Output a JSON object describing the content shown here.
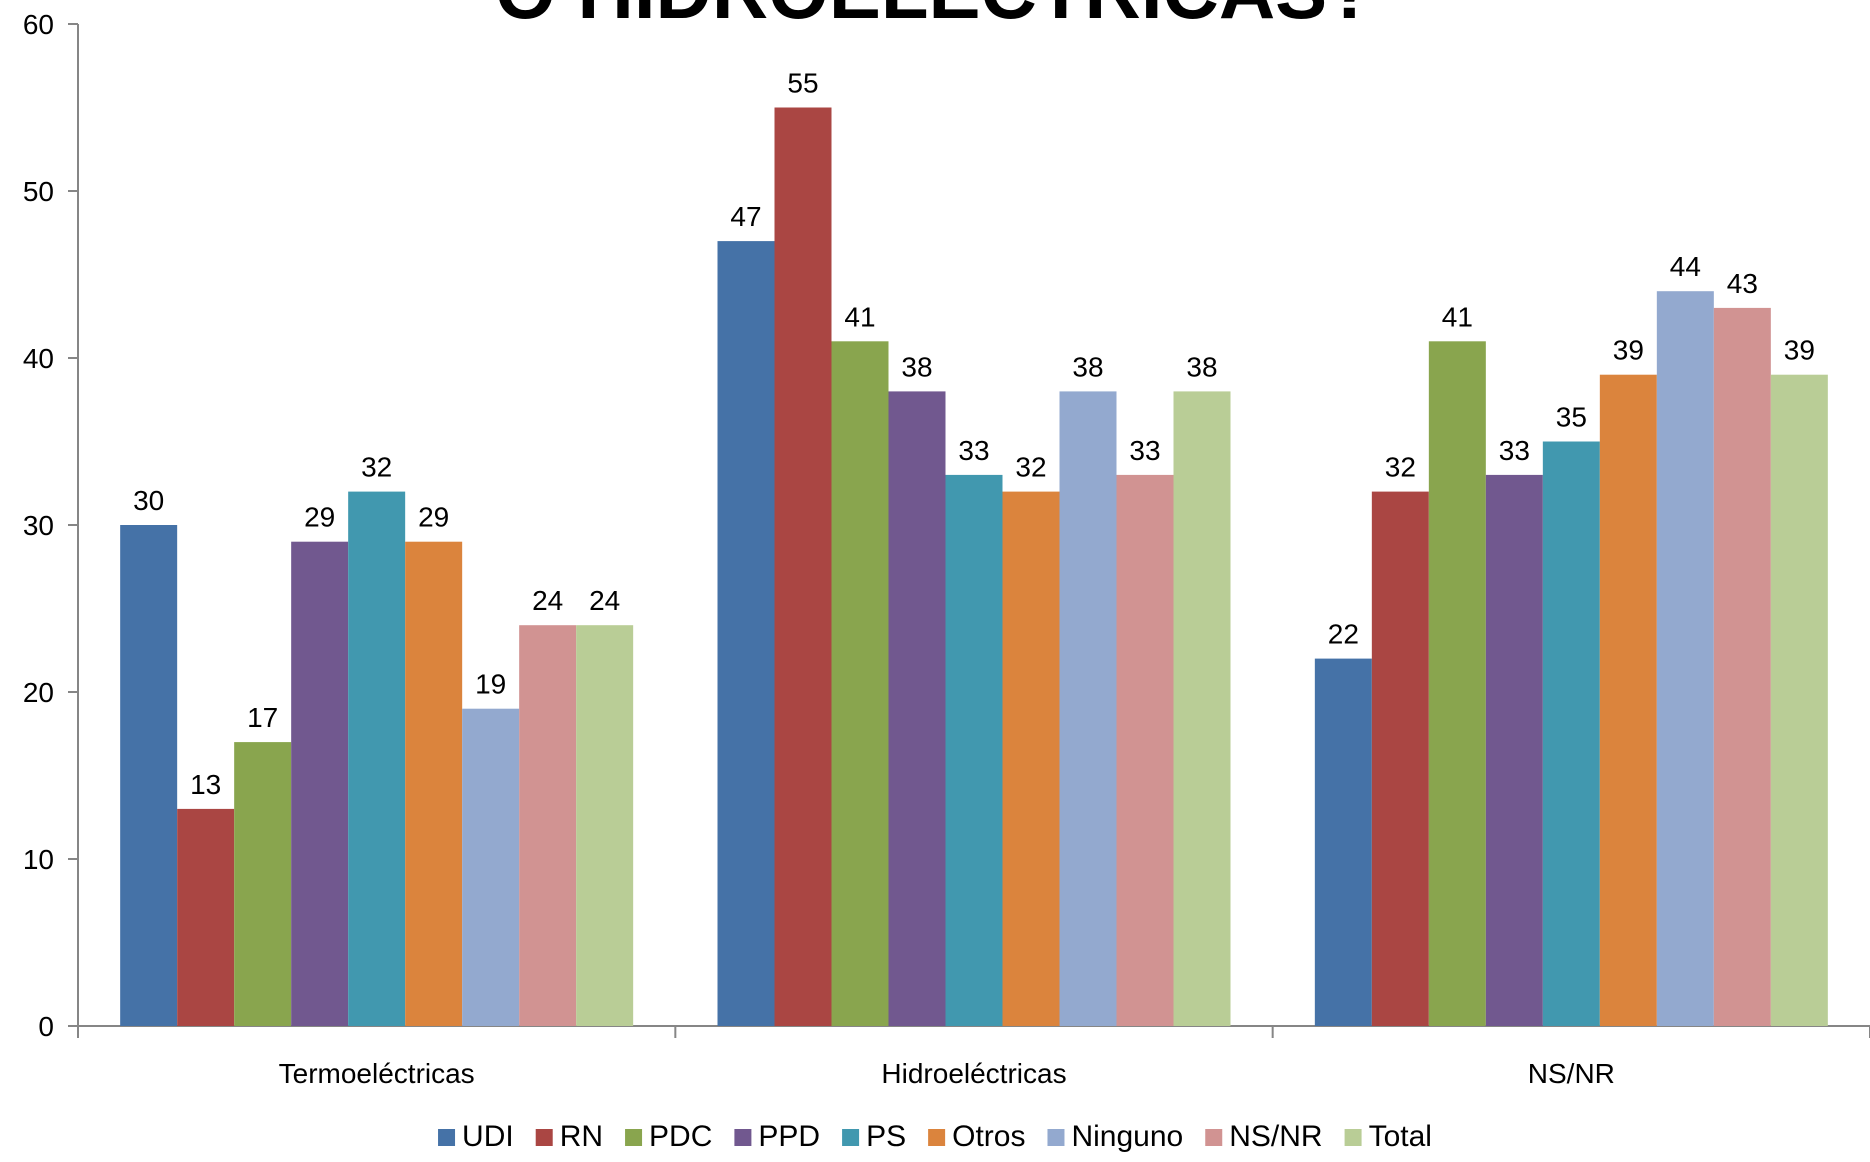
{
  "chart_data": {
    "type": "bar",
    "title": "O HIDROELÉCTRICAS?",
    "xlabel": "",
    "ylabel": "",
    "ylim": [
      0,
      60
    ],
    "yticks": [
      0,
      10,
      20,
      30,
      40,
      50,
      60
    ],
    "grid": false,
    "legend_position": "bottom",
    "categories": [
      "Termoeléctricas",
      "Hidroeléctricas",
      "NS/NR"
    ],
    "series": [
      {
        "name": "UDI",
        "color": "#4572A7",
        "values": [
          30,
          47,
          22
        ]
      },
      {
        "name": "RN",
        "color": "#AA4643",
        "values": [
          13,
          55,
          32
        ]
      },
      {
        "name": "PDC",
        "color": "#89A54E",
        "values": [
          17,
          41,
          41
        ]
      },
      {
        "name": "PPD",
        "color": "#71588F",
        "values": [
          29,
          38,
          33
        ]
      },
      {
        "name": "PS",
        "color": "#4198AF",
        "values": [
          32,
          33,
          35
        ]
      },
      {
        "name": "Otros",
        "color": "#DB843D",
        "values": [
          29,
          32,
          39
        ]
      },
      {
        "name": "Ninguno",
        "color": "#93A9CF",
        "values": [
          19,
          38,
          44
        ]
      },
      {
        "name": "NS/NR",
        "color": "#D19392",
        "values": [
          24,
          33,
          43
        ]
      },
      {
        "name": "Total",
        "color": "#B9CD96",
        "values": [
          24,
          38,
          39
        ]
      }
    ]
  }
}
